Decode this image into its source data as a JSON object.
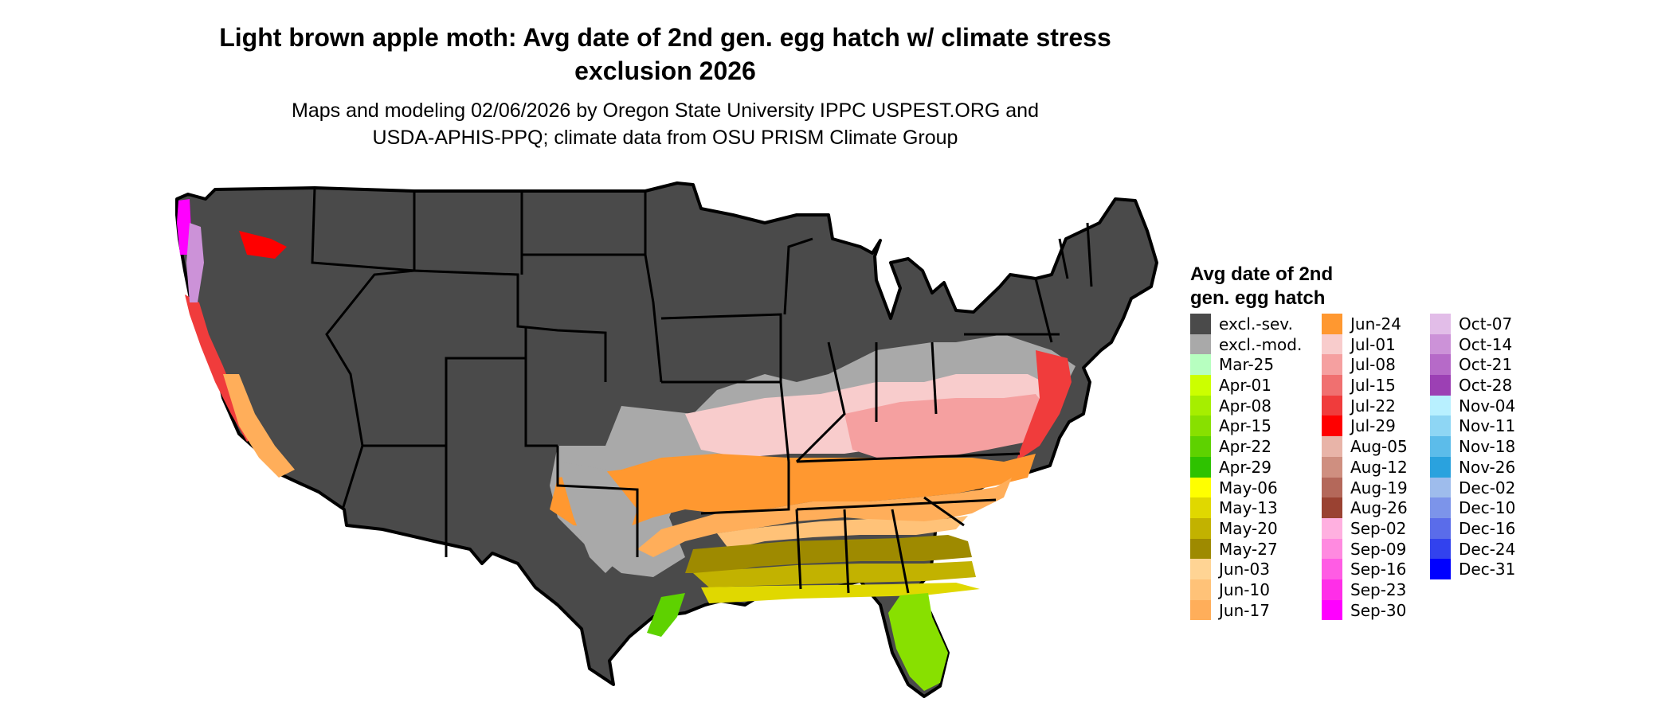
{
  "title": "Light brown apple moth: Avg date of 2nd gen. egg hatch w/ climate stress exclusion 2026",
  "subtitle_line1": "Maps and modeling 02/06/2026 by Oregon State University IPPC USPEST.ORG and",
  "subtitle_line2": "USDA-APHIS-PPQ; climate data from OSU PRISM Climate Group",
  "legend": {
    "title_line1": "Avg date of 2nd",
    "title_line2": "gen. egg hatch",
    "columns": [
      [
        {
          "label": "excl.-sev.",
          "color": "#4a4a4a"
        },
        {
          "label": "excl.-mod.",
          "color": "#a9a9a9"
        },
        {
          "label": "Mar-25",
          "color": "#b7ffc0"
        },
        {
          "label": "Apr-01",
          "color": "#ccff00"
        },
        {
          "label": "Apr-08",
          "color": "#a6ee00"
        },
        {
          "label": "Apr-15",
          "color": "#88e000"
        },
        {
          "label": "Apr-22",
          "color": "#5ed200"
        },
        {
          "label": "Apr-29",
          "color": "#2ec200"
        },
        {
          "label": "May-06",
          "color": "#ffff00"
        },
        {
          "label": "May-13",
          "color": "#e0d800"
        },
        {
          "label": "May-20",
          "color": "#c2b200"
        },
        {
          "label": "May-27",
          "color": "#9e8a00"
        },
        {
          "label": "Jun-03",
          "color": "#ffd494"
        },
        {
          "label": "Jun-10",
          "color": "#ffc278"
        },
        {
          "label": "Jun-17",
          "color": "#ffae5a"
        }
      ],
      [
        {
          "label": "Jun-24",
          "color": "#ff9830"
        },
        {
          "label": "Jul-01",
          "color": "#f8cccc"
        },
        {
          "label": "Jul-08",
          "color": "#f5a0a0"
        },
        {
          "label": "Jul-15",
          "color": "#f07070"
        },
        {
          "label": "Jul-22",
          "color": "#f03c3c"
        },
        {
          "label": "Jul-29",
          "color": "#ff0000"
        },
        {
          "label": "Aug-05",
          "color": "#e8b4a8"
        },
        {
          "label": "Aug-12",
          "color": "#cf8f80"
        },
        {
          "label": "Aug-19",
          "color": "#b4685a"
        },
        {
          "label": "Aug-26",
          "color": "#9a4232"
        },
        {
          "label": "Sep-02",
          "color": "#ffb0e0"
        },
        {
          "label": "Sep-09",
          "color": "#ff8ae0"
        },
        {
          "label": "Sep-16",
          "color": "#ff5ce4"
        },
        {
          "label": "Sep-23",
          "color": "#ff2ee8"
        },
        {
          "label": "Sep-30",
          "color": "#ff00ff"
        }
      ],
      [
        {
          "label": "Oct-07",
          "color": "#e2bde8"
        },
        {
          "label": "Oct-14",
          "color": "#cc92d8"
        },
        {
          "label": "Oct-21",
          "color": "#b66ac8"
        },
        {
          "label": "Oct-28",
          "color": "#9c40b4"
        },
        {
          "label": "Nov-04",
          "color": "#b8f0ff"
        },
        {
          "label": "Nov-11",
          "color": "#8ed6f4"
        },
        {
          "label": "Nov-18",
          "color": "#5cbcea"
        },
        {
          "label": "Nov-26",
          "color": "#2aa2de"
        },
        {
          "label": "Dec-02",
          "color": "#9ebcec"
        },
        {
          "label": "Dec-10",
          "color": "#7c94ea"
        },
        {
          "label": "Dec-16",
          "color": "#5a6cea"
        },
        {
          "label": "Dec-24",
          "color": "#3242ee"
        },
        {
          "label": "Dec-31",
          "color": "#0000ff"
        }
      ]
    ]
  }
}
